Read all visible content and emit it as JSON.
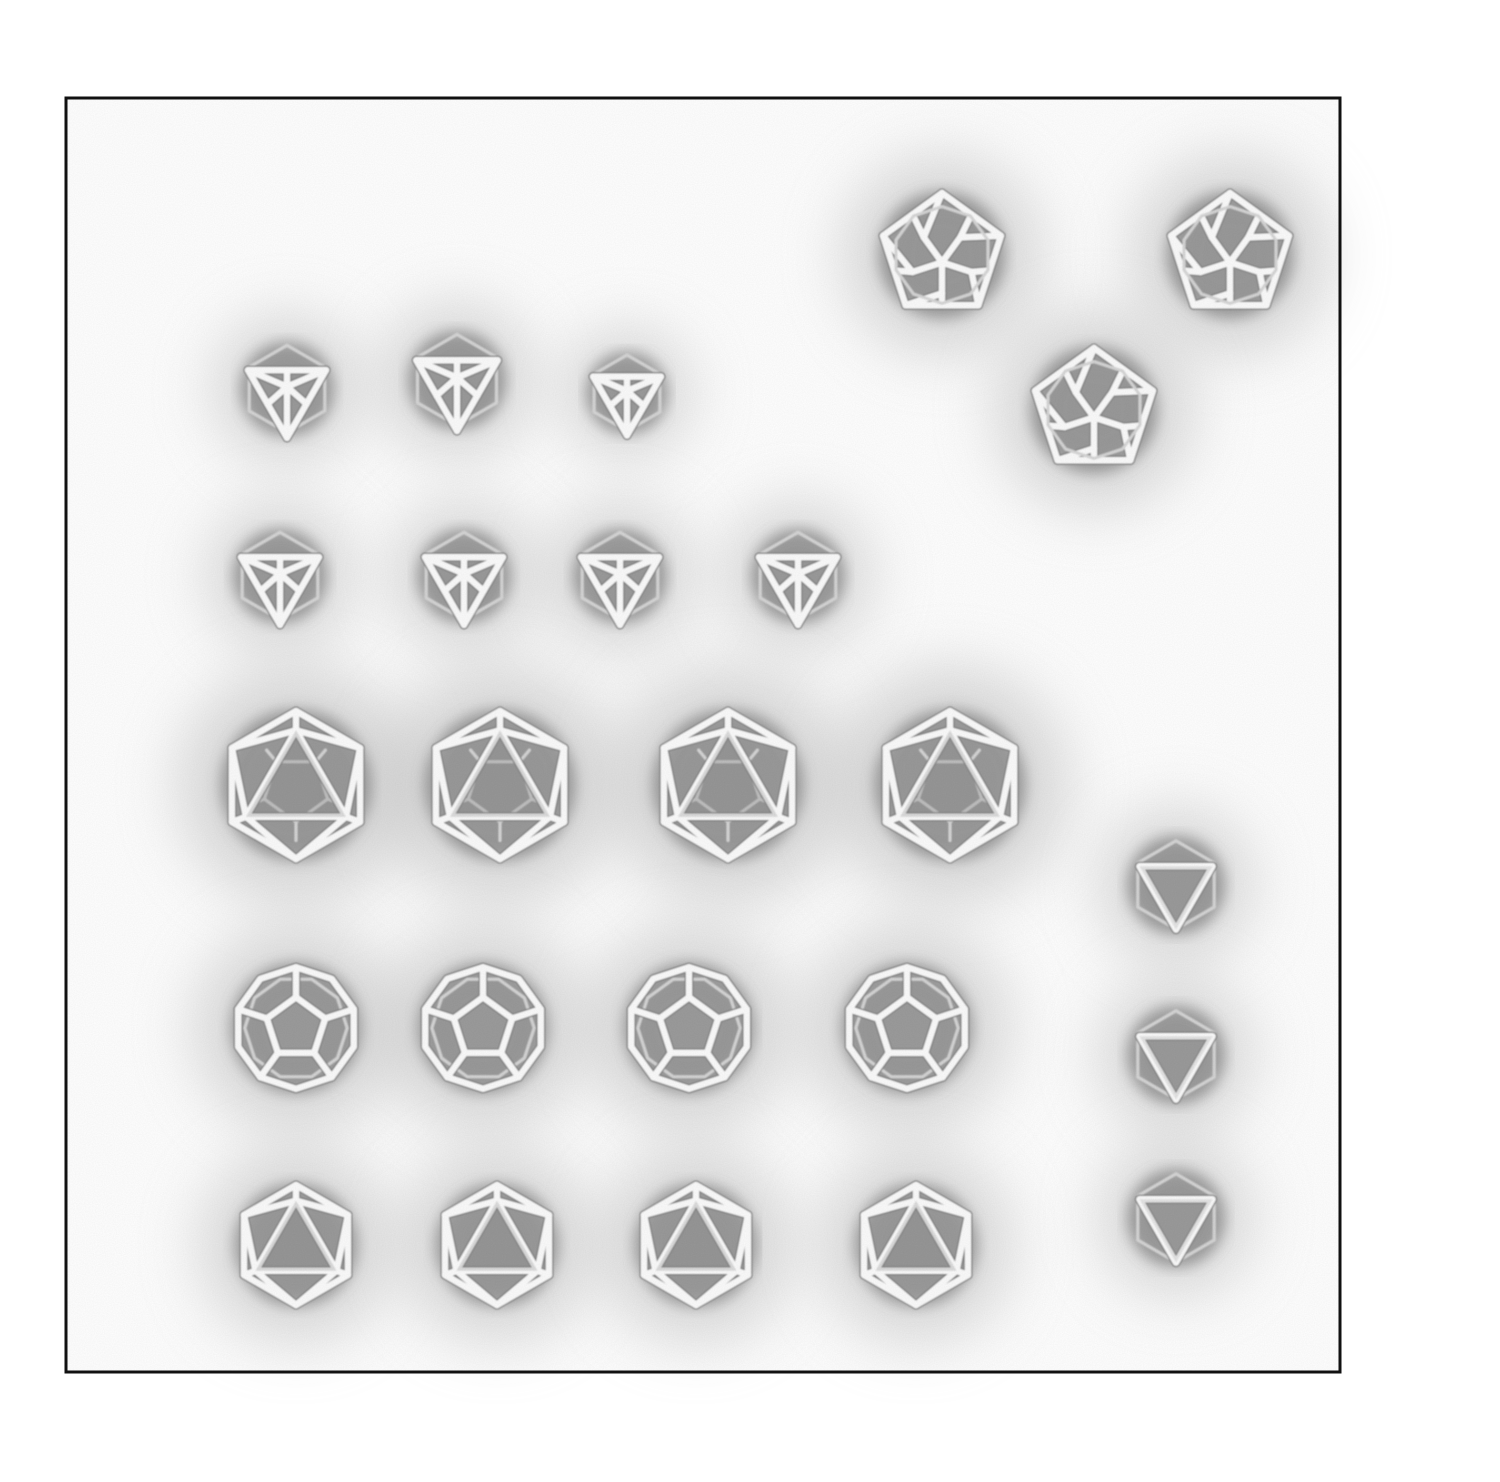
{
  "image": {
    "background": "#ffffff",
    "frame_color": "#111111",
    "halo_color": "#bdbdbd",
    "strut_color": "#fbfbfb",
    "shadow_color": "#7a7a7a"
  },
  "particles": [
    {
      "kind": "dodecahedron-skeleton",
      "view": "vertex"
    },
    {
      "kind": "dodecahedron-skeleton",
      "view": "vertex"
    },
    {
      "kind": "dodecahedron-skeleton",
      "view": "vertex"
    },
    {
      "kind": "octahedron-skeleton",
      "view": "top"
    },
    {
      "kind": "octahedron-skeleton",
      "view": "top"
    },
    {
      "kind": "octahedron-skeleton",
      "view": "top"
    },
    {
      "kind": "octahedron-skeleton",
      "view": "top"
    },
    {
      "kind": "octahedron-skeleton",
      "view": "top"
    },
    {
      "kind": "octahedron-skeleton",
      "view": "top"
    },
    {
      "kind": "octahedron-skeleton",
      "view": "top"
    },
    {
      "kind": "icosahedron-skeleton",
      "view": "large"
    },
    {
      "kind": "icosahedron-skeleton",
      "view": "large"
    },
    {
      "kind": "icosahedron-skeleton",
      "view": "large"
    },
    {
      "kind": "icosahedron-skeleton",
      "view": "large"
    },
    {
      "kind": "dodecahedron-skeleton",
      "view": "face"
    },
    {
      "kind": "dodecahedron-skeleton",
      "view": "face"
    },
    {
      "kind": "dodecahedron-skeleton",
      "view": "face"
    },
    {
      "kind": "dodecahedron-skeleton",
      "view": "face"
    },
    {
      "kind": "icosahedron-skeleton",
      "view": "face"
    },
    {
      "kind": "icosahedron-skeleton",
      "view": "face"
    },
    {
      "kind": "icosahedron-skeleton",
      "view": "face"
    },
    {
      "kind": "icosahedron-skeleton",
      "view": "face"
    },
    {
      "kind": "tetrahedron-skeleton",
      "view": "face"
    },
    {
      "kind": "tetrahedron-skeleton",
      "view": "face"
    },
    {
      "kind": "tetrahedron-skeleton",
      "view": "face"
    }
  ]
}
